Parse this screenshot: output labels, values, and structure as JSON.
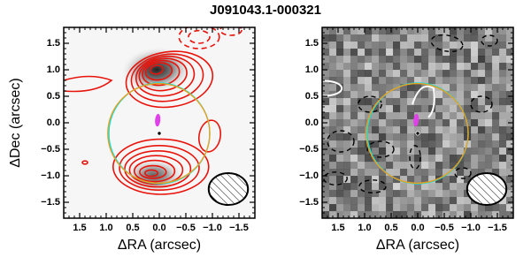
{
  "chart_data": [
    {
      "type": "image",
      "title": "J091043.1-000321",
      "xlabel": "ΔRA (arcsec)",
      "ylabel": "ΔDec (arcsec)",
      "xlim": [
        1.8,
        -1.8
      ],
      "ylim": [
        -1.8,
        1.8
      ],
      "xticks": [
        {
          "value": 1.5,
          "label": "1.5"
        },
        {
          "value": 1.0,
          "label": "1.0"
        },
        {
          "value": 0.5,
          "label": "0.5"
        },
        {
          "value": 0.0,
          "label": "0.0"
        },
        {
          "value": -0.5,
          "label": "−0.5"
        },
        {
          "value": -1.0,
          "label": "−1.0"
        },
        {
          "value": -1.5,
          "label": "−1.5"
        }
      ],
      "yticks": [
        {
          "value": 1.5,
          "label": "1.5"
        },
        {
          "value": 1.0,
          "label": "1.0"
        },
        {
          "value": 0.5,
          "label": "0.5"
        },
        {
          "value": 0.0,
          "label": "0.0"
        },
        {
          "value": -0.5,
          "label": "−0.5"
        },
        {
          "value": -1.0,
          "label": "−1.0"
        },
        {
          "value": -1.5,
          "label": "−1.5"
        }
      ]
    },
    {
      "type": "image",
      "xlabel": "ΔRA (arcsec)",
      "xlim": [
        1.8,
        -1.8
      ],
      "ylim": [
        -1.8,
        1.8
      ],
      "xticks": [
        {
          "value": 1.5,
          "label": "1.5"
        },
        {
          "value": 1.0,
          "label": "1.0"
        },
        {
          "value": 0.5,
          "label": "0.5"
        },
        {
          "value": 0.0,
          "label": "0.0"
        },
        {
          "value": -0.5,
          "label": "−0.5"
        },
        {
          "value": -1.0,
          "label": "−1.0"
        },
        {
          "value": -1.5,
          "label": "−1.5"
        }
      ],
      "yticks": [
        {
          "value": 1.5,
          "label": "1.5"
        },
        {
          "value": 1.0,
          "label": "1.0"
        },
        {
          "value": 0.5,
          "label": "0.5"
        },
        {
          "value": 0.0,
          "label": "0.0"
        },
        {
          "value": -0.5,
          "label": "−0.5"
        },
        {
          "value": -1.0,
          "label": "−1.0"
        },
        {
          "value": -1.5,
          "label": "−1.5"
        }
      ]
    }
  ]
}
